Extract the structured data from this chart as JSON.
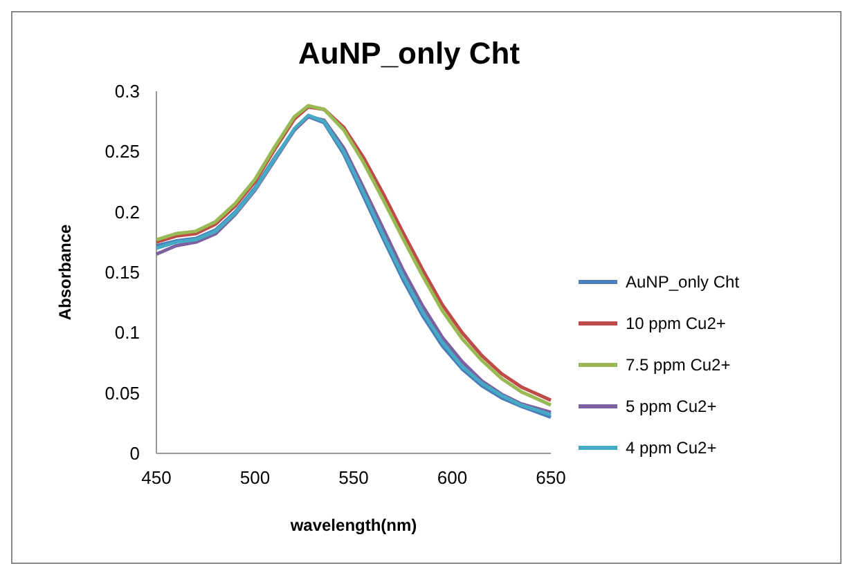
{
  "chart_data": {
    "type": "line",
    "title": "AuNP_only Cht",
    "xlabel": "wavelength(nm)",
    "ylabel": "Absorbance",
    "xlim": [
      450,
      650
    ],
    "xticks": [
      450,
      500,
      550,
      600,
      650
    ],
    "ylim": [
      0,
      0.3
    ],
    "yticks": [
      0,
      0.05,
      0.1,
      0.15,
      0.2,
      0.25,
      0.3
    ],
    "legend": "right",
    "grid": false,
    "marker": "none",
    "x": [
      450,
      460,
      470,
      480,
      490,
      500,
      510,
      520,
      527,
      535,
      545,
      555,
      565,
      575,
      585,
      595,
      605,
      615,
      625,
      635,
      650
    ],
    "series": [
      {
        "name": "AuNP_only Cht",
        "color": "#4a7ebb",
        "values": [
          0.172,
          0.176,
          0.178,
          0.185,
          0.2,
          0.22,
          0.245,
          0.268,
          0.279,
          0.274,
          0.248,
          0.213,
          0.178,
          0.144,
          0.114,
          0.089,
          0.07,
          0.056,
          0.046,
          0.039,
          0.03
        ]
      },
      {
        "name": "10 ppm Cu2+",
        "color": "#be4b48",
        "values": [
          0.175,
          0.18,
          0.182,
          0.19,
          0.205,
          0.225,
          0.252,
          0.277,
          0.287,
          0.285,
          0.27,
          0.245,
          0.215,
          0.183,
          0.152,
          0.123,
          0.1,
          0.081,
          0.066,
          0.055,
          0.044
        ]
      },
      {
        "name": "7.5 ppm Cu2+",
        "color": "#98b954",
        "values": [
          0.177,
          0.182,
          0.184,
          0.192,
          0.207,
          0.227,
          0.254,
          0.279,
          0.288,
          0.285,
          0.268,
          0.241,
          0.21,
          0.178,
          0.147,
          0.118,
          0.095,
          0.077,
          0.062,
          0.051,
          0.04
        ]
      },
      {
        "name": "5 ppm Cu2+",
        "color": "#7d60a0",
        "values": [
          0.165,
          0.172,
          0.175,
          0.182,
          0.198,
          0.218,
          0.243,
          0.268,
          0.279,
          0.276,
          0.253,
          0.22,
          0.186,
          0.152,
          0.122,
          0.096,
          0.076,
          0.06,
          0.049,
          0.041,
          0.034
        ]
      },
      {
        "name": "4 ppm Cu2+",
        "color": "#46aac5",
        "values": [
          0.17,
          0.175,
          0.177,
          0.184,
          0.199,
          0.219,
          0.244,
          0.269,
          0.28,
          0.275,
          0.25,
          0.216,
          0.181,
          0.147,
          0.117,
          0.092,
          0.072,
          0.058,
          0.048,
          0.04,
          0.032
        ]
      }
    ]
  }
}
